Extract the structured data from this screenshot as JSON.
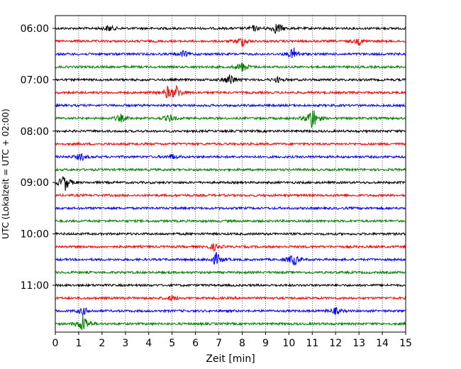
{
  "chart_data": {
    "type": "line",
    "title": "",
    "xlabel": "Zeit  [min]",
    "ylabel": "UTC (Lokalzeit = UTC + 02:00)",
    "xlim": [
      0,
      15
    ],
    "x_ticks": [
      "0",
      "1",
      "2",
      "3",
      "4",
      "5",
      "6",
      "7",
      "8",
      "9",
      "10",
      "11",
      "12",
      "13",
      "14",
      "15"
    ],
    "y_tick_labels": [
      "06:00",
      "07:00",
      "08:00",
      "09:00",
      "10:00",
      "11:00"
    ],
    "grid": "vertical dotted lines at each minute",
    "trace_colors": [
      "#000000",
      "#ff0000",
      "#0000ff",
      "#008000"
    ],
    "trace_start_times": [
      "06:00",
      "06:15",
      "06:30",
      "06:45",
      "07:00",
      "07:15",
      "07:30",
      "07:45",
      "08:00",
      "08:15",
      "08:30",
      "08:45",
      "09:00",
      "09:15",
      "09:30",
      "09:45",
      "10:00",
      "10:15",
      "10:30",
      "10:45",
      "11:00",
      "11:15",
      "11:30",
      "11:45"
    ],
    "events": [
      {
        "trace": "06:00",
        "minutes": [
          2.3,
          8.5,
          9.5
        ],
        "amplitudes": [
          0.5,
          0.4,
          1.0
        ]
      },
      {
        "trace": "06:15",
        "minutes": [
          8.0,
          13.0
        ],
        "amplitudes": [
          0.8,
          0.5
        ]
      },
      {
        "trace": "06:30",
        "minutes": [
          5.5,
          10.2
        ],
        "amplitudes": [
          0.5,
          1.0
        ]
      },
      {
        "trace": "06:45",
        "minutes": [
          8.0
        ],
        "amplitudes": [
          0.8
        ]
      },
      {
        "trace": "07:00",
        "minutes": [
          7.5,
          9.5
        ],
        "amplitudes": [
          1.0,
          0.4
        ]
      },
      {
        "trace": "07:15",
        "minutes": [
          4.8,
          5.2
        ],
        "amplitudes": [
          0.8,
          1.0
        ]
      },
      {
        "trace": "07:45",
        "minutes": [
          2.8,
          4.9,
          11.0
        ],
        "amplitudes": [
          0.6,
          0.6,
          2.0
        ]
      },
      {
        "trace": "08:30",
        "minutes": [
          1.1,
          5.0
        ],
        "amplitudes": [
          0.6,
          0.4
        ]
      },
      {
        "trace": "09:00",
        "minutes": [
          0.4
        ],
        "amplitudes": [
          1.4
        ]
      },
      {
        "trace": "10:15",
        "minutes": [
          6.8
        ],
        "amplitudes": [
          0.5
        ]
      },
      {
        "trace": "10:30",
        "minutes": [
          6.9,
          10.2
        ],
        "amplitudes": [
          1.0,
          1.0
        ]
      },
      {
        "trace": "11:15",
        "minutes": [
          5.0
        ],
        "amplitudes": [
          0.4
        ]
      },
      {
        "trace": "11:30",
        "minutes": [
          1.2,
          12.0
        ],
        "amplitudes": [
          0.6,
          0.5
        ]
      },
      {
        "trace": "11:45",
        "minutes": [
          1.2
        ],
        "amplitudes": [
          1.6
        ]
      }
    ]
  }
}
